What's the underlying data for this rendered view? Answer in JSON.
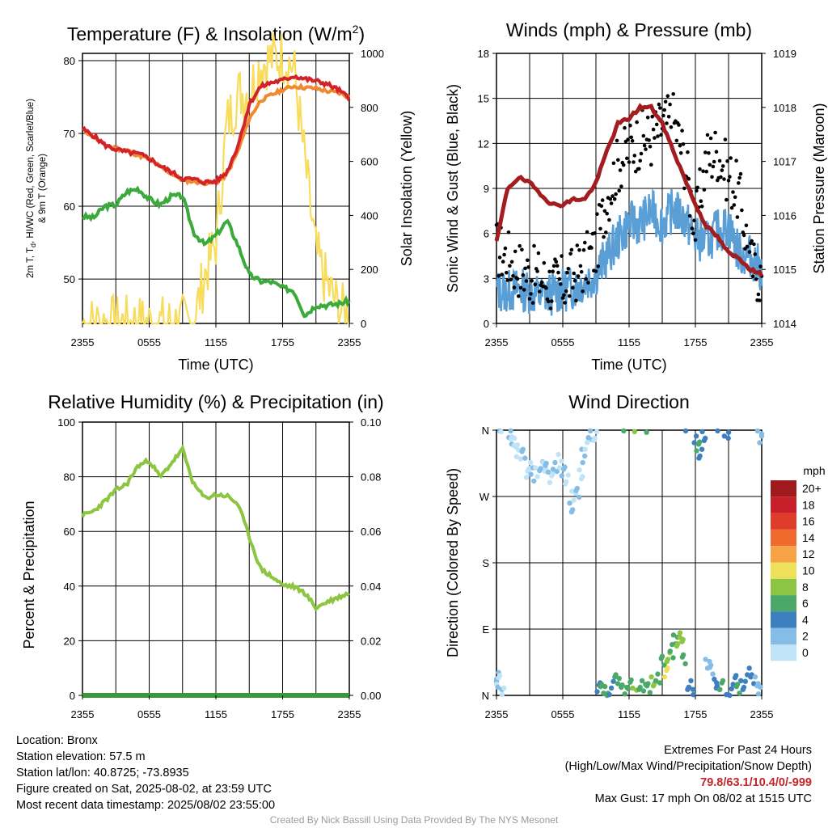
{
  "x_tick_labels": [
    "2355",
    "0555",
    "1155",
    "1755",
    "2355"
  ],
  "panels": {
    "temperature": {
      "title": "Temperature (F) & Insolation (W/m",
      "title_sup": "2",
      "title_end": ")",
      "ylabel_line1": "2m T, T",
      "ylabel_sub": "d",
      "ylabel_rest": ", HI/WC (Red, Green, Scarlet/Blue)",
      "ylabel_line2": "& 9m T (Orange)",
      "y2label": "Solar Insolation (Yellow)",
      "xlabel": "Time (UTC)",
      "y_ticks": [
        50,
        60,
        70,
        80
      ],
      "y2_ticks": [
        0,
        200,
        400,
        600,
        800,
        1000
      ]
    },
    "winds": {
      "title": "Winds (mph) & Pressure (mb)",
      "ylabel": "Sonic Wind & Gust (Blue, Black)",
      "y2label": "Station Pressure (Maroon)",
      "xlabel": "Time (UTC)",
      "y_ticks": [
        0,
        3,
        6,
        9,
        12,
        15,
        18
      ],
      "y2_ticks": [
        1014,
        1015,
        1016,
        1017,
        1018,
        1019
      ]
    },
    "humidity": {
      "title": "Relative Humidity (%) & Precipitation (in)",
      "ylabel": "Percent & Precipitation",
      "y_ticks": [
        0,
        20,
        40,
        60,
        80,
        100
      ],
      "y2_ticks": [
        "0.00",
        "0.02",
        "0.04",
        "0.06",
        "0.08",
        "0.10"
      ]
    },
    "direction": {
      "title": "Wind Direction",
      "ylabel": "Direction (Colored By Speed)",
      "y_ticks": [
        "N",
        "E",
        "S",
        "W",
        "N"
      ],
      "colorbar_title": "mph",
      "colorbar_labels": [
        "20+",
        "18",
        "16",
        "14",
        "12",
        "10",
        "8",
        "6",
        "4",
        "2",
        "0"
      ],
      "colorbar_colors": [
        "#9e1a1d",
        "#c8202a",
        "#e03c2c",
        "#ef6a2c",
        "#f7a245",
        "#ede15a",
        "#8cc542",
        "#4aa869",
        "#3d7fbf",
        "#84bde6",
        "#bfe4f7"
      ]
    }
  },
  "colors": {
    "temp": "#d2232a",
    "temp9m": "#f08a30",
    "dewpoint": "#3aaa3a",
    "solar": "#f8dc5c",
    "wind": "#5a9ed6",
    "gust": "#000000",
    "pressure": "#a31c1f",
    "rh": "#8cc540",
    "precip": "#3a9a3a"
  },
  "chart_data": [
    {
      "type": "line",
      "title": "Temperature (F) & Insolation (W/m2)",
      "xlabel": "Time (UTC)",
      "ylabel": "2m T, Td, HI/WC (Red, Green, Scarlet/Blue) & 9m T (Orange)",
      "y2label": "Solar Insolation (Yellow)",
      "x_hours": [
        0,
        1,
        2,
        3,
        4,
        5,
        6,
        7,
        8,
        9,
        10,
        11,
        12,
        13,
        14,
        15,
        16,
        17,
        18,
        19,
        20,
        21,
        22,
        23,
        24
      ],
      "ylim": [
        43.9,
        81
      ],
      "y2lim": [
        0,
        1000
      ],
      "series": [
        {
          "name": "2m T",
          "axis": "y",
          "values": [
            70.6,
            69.7,
            68.4,
            67.8,
            67.4,
            67.2,
            66.6,
            65.5,
            64.7,
            63.8,
            63.7,
            63.3,
            63.4,
            64.7,
            68.4,
            74.0,
            76.4,
            77.0,
            77.3,
            77.9,
            77.5,
            77.2,
            76.8,
            76.0,
            74.8
          ]
        },
        {
          "name": "9m T",
          "axis": "y",
          "values": [
            70.6,
            69.5,
            68.4,
            67.9,
            67.7,
            67.0,
            66.5,
            65.4,
            64.5,
            63.6,
            63.4,
            63.2,
            63.2,
            64.4,
            67.6,
            72.0,
            74.5,
            75.3,
            76.0,
            76.5,
            76.3,
            76.2,
            75.8,
            75.6,
            75.0
          ]
        },
        {
          "name": "Td",
          "axis": "y",
          "values": [
            58.6,
            58.4,
            60.0,
            60.2,
            62.0,
            62.4,
            61.0,
            60.2,
            61.4,
            61.4,
            56.4,
            54.7,
            56.0,
            58.0,
            54.6,
            50.6,
            49.7,
            49.6,
            48.8,
            48.4,
            45.0,
            46.4,
            46.4,
            46.6,
            47.0
          ]
        },
        {
          "name": "Solar",
          "axis": "y2",
          "values": [
            0,
            0,
            0,
            0,
            0,
            0,
            0,
            0,
            0,
            0,
            5,
            180,
            300,
            740,
            850,
            860,
            960,
            980,
            990,
            950,
            600,
            260,
            140,
            60,
            20
          ]
        }
      ]
    },
    {
      "type": "line",
      "title": "Winds (mph) & Pressure (mb)",
      "xlabel": "Time (UTC)",
      "ylabel": "Sonic Wind & Gust (Blue, Black)",
      "y2label": "Station Pressure (Maroon)",
      "x_hours": [
        0,
        1,
        2,
        3,
        4,
        5,
        6,
        7,
        8,
        9,
        10,
        11,
        12,
        13,
        14,
        15,
        16,
        17,
        18,
        19,
        20,
        21,
        22,
        23,
        24
      ],
      "ylim": [
        0,
        18
      ],
      "y2lim": [
        1014,
        1019
      ],
      "series": [
        {
          "name": "Sonic Wind",
          "axis": "y",
          "values": [
            2.2,
            2.1,
            2.3,
            2.1,
            1.8,
            2.0,
            2.2,
            2.4,
            2.8,
            3.3,
            4.5,
            5.6,
            6.7,
            6.7,
            7.5,
            6.7,
            7.6,
            7.0,
            5.7,
            5.4,
            6.2,
            6.5,
            4.6,
            4.5,
            3.5
          ]
        },
        {
          "name": "Gust",
          "axis": "y",
          "values": [
            5.0,
            4.4,
            3.7,
            3.3,
            3.0,
            2.6,
            2.6,
            3.2,
            4.0,
            5.0,
            8.4,
            10.6,
            11.6,
            12.3,
            12.3,
            13.2,
            13.6,
            11.0,
            6.5,
            11.1,
            11.4,
            9.9,
            8.5,
            4.0,
            3.0
          ]
        },
        {
          "name": "Station Pressure",
          "axis": "y2",
          "values": [
            1015.5,
            1016.5,
            1016.7,
            1016.6,
            1016.4,
            1016.2,
            1016.2,
            1016.3,
            1016.3,
            1016.6,
            1017.2,
            1017.7,
            1017.8,
            1018.0,
            1018.0,
            1017.7,
            1017.2,
            1016.7,
            1016.2,
            1015.8,
            1015.6,
            1015.3,
            1015.2,
            1015.0,
            1014.9
          ]
        }
      ]
    },
    {
      "type": "line",
      "title": "Relative Humidity (%) & Precipitation (in)",
      "ylabel": "Percent & Precipitation",
      "x_hours": [
        0,
        1,
        2,
        3,
        4,
        5,
        6,
        7,
        8,
        9,
        10,
        11,
        12,
        13,
        14,
        15,
        16,
        17,
        18,
        19,
        20,
        21,
        22,
        23,
        24
      ],
      "ylim": [
        0,
        100
      ],
      "y2lim": [
        0,
        0.1
      ],
      "series": [
        {
          "name": "Relative Humidity",
          "axis": "y",
          "values": [
            65.8,
            67.4,
            71.0,
            75.0,
            77.4,
            84.0,
            86.0,
            79.8,
            85.0,
            90.0,
            77.2,
            72.2,
            73.4,
            73.0,
            70.0,
            58.0,
            46.4,
            43.5,
            40.4,
            39.8,
            37.5,
            32.0,
            34.2,
            35.8,
            37.5
          ]
        },
        {
          "name": "Precipitation",
          "axis": "y2",
          "values": [
            0,
            0,
            0,
            0,
            0,
            0,
            0,
            0,
            0,
            0,
            0,
            0,
            0,
            0,
            0,
            0,
            0,
            0,
            0,
            0,
            0,
            0,
            0,
            0,
            0
          ]
        }
      ]
    },
    {
      "type": "scatter",
      "title": "Wind Direction",
      "ylabel": "Direction (Colored By Speed)",
      "y_categories": [
        "N",
        "E",
        "S",
        "W",
        "N"
      ],
      "ylim": [
        0,
        360
      ],
      "points_hours_deg_mph": [
        [
          0.1,
          28,
          3
        ],
        [
          0.2,
          18,
          1
        ],
        [
          0.3,
          8,
          2
        ],
        [
          0.5,
          4,
          0
        ],
        [
          1.2,
          350,
          2
        ],
        [
          1.5,
          345,
          1
        ],
        [
          1.8,
          340,
          0
        ],
        [
          2.0,
          330,
          1
        ],
        [
          2.4,
          325,
          2
        ],
        [
          2.8,
          305,
          1
        ],
        [
          3.0,
          310,
          0
        ],
        [
          3.3,
          300,
          2
        ],
        [
          3.7,
          303,
          1
        ],
        [
          4.0,
          308,
          2
        ],
        [
          4.3,
          313,
          1
        ],
        [
          4.6,
          306,
          2
        ],
        [
          5.0,
          298,
          1
        ],
        [
          5.3,
          310,
          2
        ],
        [
          5.7,
          318,
          1
        ],
        [
          6.0,
          304,
          2
        ],
        [
          6.4,
          290,
          1
        ],
        [
          6.8,
          258,
          2
        ],
        [
          7.0,
          268,
          1
        ],
        [
          7.3,
          278,
          2
        ],
        [
          7.6,
          300,
          1
        ],
        [
          7.9,
          325,
          2
        ],
        [
          8.2,
          340,
          1
        ],
        [
          8.5,
          350,
          2
        ],
        [
          8.9,
          355,
          1
        ],
        [
          9.2,
          8,
          4
        ],
        [
          9.6,
          12,
          6
        ],
        [
          10.0,
          6,
          6
        ],
        [
          10.4,
          10,
          4
        ],
        [
          10.8,
          22,
          7
        ],
        [
          11.2,
          14,
          6
        ],
        [
          11.7,
          8,
          7
        ],
        [
          12.1,
          12,
          6
        ],
        [
          12.5,
          7,
          8
        ],
        [
          13.0,
          14,
          6
        ],
        [
          13.4,
          6,
          7
        ],
        [
          13.8,
          10,
          6
        ],
        [
          14.2,
          16,
          8
        ],
        [
          14.6,
          26,
          6
        ],
        [
          15.0,
          44,
          7
        ],
        [
          15.3,
          34,
          10
        ],
        [
          15.6,
          52,
          8
        ],
        [
          15.9,
          60,
          7
        ],
        [
          16.2,
          76,
          6
        ],
        [
          16.4,
          70,
          8
        ],
        [
          16.7,
          82,
          8
        ],
        [
          17.0,
          46,
          6
        ],
        [
          17.3,
          8,
          4
        ],
        [
          17.6,
          14,
          5
        ],
        [
          17.9,
          352,
          5
        ],
        [
          18.2,
          338,
          6
        ],
        [
          18.5,
          325,
          5
        ],
        [
          18.8,
          355,
          4
        ],
        [
          19.1,
          40,
          2
        ],
        [
          19.4,
          38,
          2
        ],
        [
          19.8,
          16,
          4
        ],
        [
          20.1,
          8,
          4
        ],
        [
          20.4,
          14,
          6
        ],
        [
          20.8,
          352,
          4
        ],
        [
          21.1,
          6,
          4
        ],
        [
          21.5,
          18,
          4
        ],
        [
          21.9,
          12,
          6
        ],
        [
          22.3,
          14,
          4
        ],
        [
          22.7,
          28,
          4
        ],
        [
          23.1,
          22,
          4
        ],
        [
          23.5,
          16,
          2
        ],
        [
          23.8,
          8,
          2
        ],
        [
          24.0,
          346,
          2
        ]
      ]
    }
  ],
  "footer": {
    "location": "Location: Bronx",
    "elevation": "Station elevation: 57.5 m",
    "latlon": "Station lat/lon: 40.8725; -73.8935",
    "created": "Figure created on Sat, 2025-08-02, at 23:59 UTC",
    "recent": "Most recent data timestamp: 2025/08/02 23:55:00",
    "extremes_title": "Extremes For Past 24 Hours",
    "extremes_legend": "(High/Low/Max Wind/Precipitation/Snow Depth)",
    "extremes_values": "79.8/63.1/10.4/0/-999",
    "max_gust": "Max Gust: 17 mph On 08/02 at 1515 UTC",
    "credit": "Created By Nick Bassill Using Data Provided By The NYS Mesonet"
  }
}
